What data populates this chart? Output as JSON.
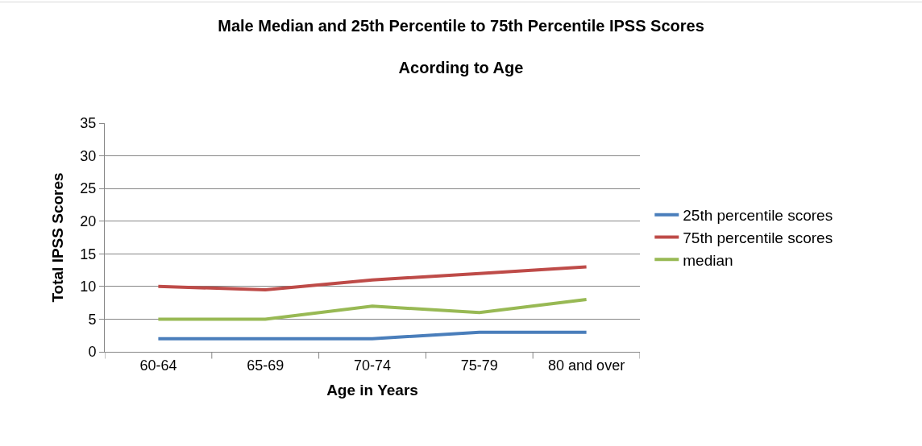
{
  "chart_data": {
    "type": "line",
    "title": "Male Median and 25th Percentile to 75th Percentile IPSS Scores\nAcording to Age",
    "xlabel": "Age in Years",
    "ylabel": "Total IPSS Scores",
    "categories": [
      "60-64",
      "65-69",
      "70-74",
      "75-79",
      "80 and over"
    ],
    "series": [
      {
        "name": "25th percentile scores",
        "color": "#4a7ebb",
        "values": [
          2,
          2,
          2,
          3,
          3
        ]
      },
      {
        "name": "75th percentile scores",
        "color": "#be4b48",
        "values": [
          10,
          9.5,
          11,
          12,
          13
        ]
      },
      {
        "name": "median",
        "color": "#98b954",
        "values": [
          5,
          5,
          7,
          6,
          8
        ]
      }
    ],
    "ylim": [
      0,
      35
    ],
    "yticks": [
      0,
      5,
      10,
      15,
      20,
      25,
      30,
      35
    ],
    "grid": "y",
    "legend": "right",
    "marker": "none",
    "line_style": "solid"
  }
}
